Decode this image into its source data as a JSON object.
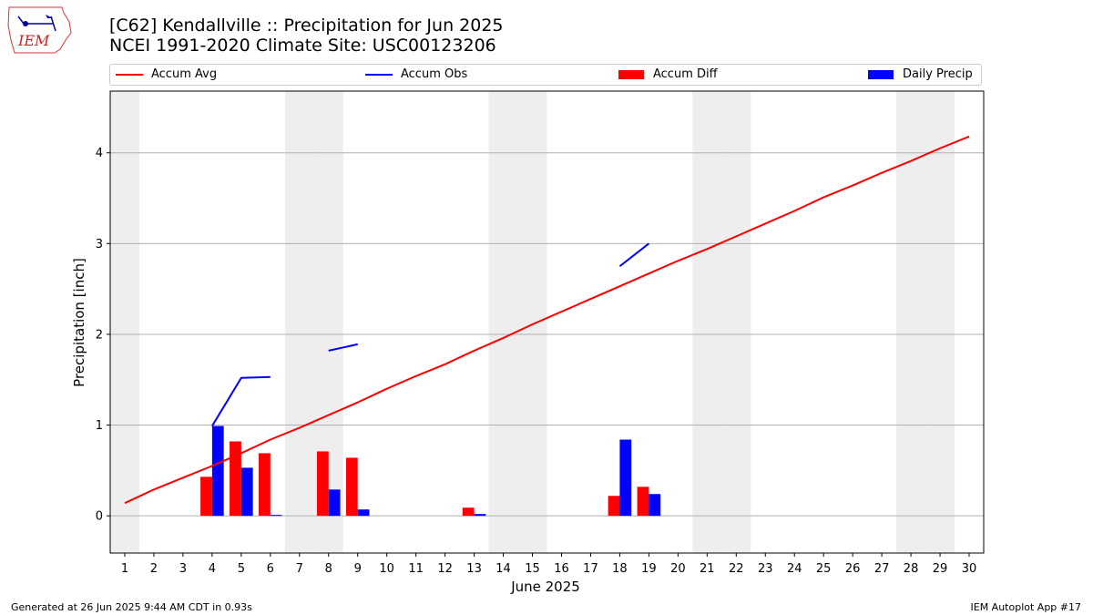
{
  "header": {
    "title_line1": "[C62] Kendallville :: Precipitation for Jun 2025",
    "title_line2": "NCEI 1991-2020 Climate Site: USC00123206",
    "logo_text": "IEM"
  },
  "legend": {
    "items": [
      {
        "label": "Accum Avg",
        "kind": "line",
        "color": "#ff0000"
      },
      {
        "label": "Accum Obs",
        "kind": "line",
        "color": "#0000ff"
      },
      {
        "label": "Accum Diff",
        "kind": "bar",
        "color": "#ff0000"
      },
      {
        "label": "Daily Precip",
        "kind": "bar",
        "color": "#0000ff"
      }
    ],
    "placement": "top, above plot"
  },
  "footer": {
    "left": "Generated at 26 Jun 2025 9:44 AM CDT in 0.93s",
    "right": "IEM Autoplot App #17"
  },
  "chart_data": {
    "type": "bar",
    "xlabel": "June 2025",
    "ylabel": "Precipitation [inch]",
    "x": [
      1,
      2,
      3,
      4,
      5,
      6,
      7,
      8,
      9,
      10,
      11,
      12,
      13,
      14,
      15,
      16,
      17,
      18,
      19,
      20,
      21,
      22,
      23,
      24,
      25,
      26,
      27,
      28,
      29,
      30
    ],
    "xlim": [
      0.5,
      30.5
    ],
    "ylim": [
      -0.41,
      4.68
    ],
    "yticks": [
      0,
      1,
      2,
      3,
      4
    ],
    "grid": "horizontal",
    "weekend_days_shaded": [
      1,
      7,
      8,
      14,
      15,
      21,
      22,
      28,
      29
    ],
    "colors": {
      "avg": "#ff0000",
      "obs": "#0000ff",
      "shade": "#eeeeee",
      "grid": "#b0b0b0"
    },
    "series": [
      {
        "name": "Accum Avg",
        "kind": "line",
        "values": [
          0.14,
          0.29,
          0.42,
          0.55,
          0.69,
          0.84,
          0.97,
          1.11,
          1.25,
          1.4,
          1.54,
          1.67,
          1.82,
          1.96,
          2.11,
          2.25,
          2.39,
          2.53,
          2.67,
          2.81,
          2.94,
          3.08,
          3.22,
          3.36,
          3.51,
          3.64,
          3.78,
          3.91,
          4.05,
          4.18
        ]
      },
      {
        "name": "Accum Obs",
        "kind": "line",
        "values": [
          null,
          null,
          null,
          0.99,
          1.52,
          1.53,
          null,
          1.82,
          1.89,
          null,
          null,
          null,
          null,
          null,
          null,
          null,
          null,
          2.75,
          3.0,
          null,
          null,
          null,
          null,
          null,
          null,
          null,
          null,
          null,
          null,
          null
        ]
      },
      {
        "name": "Accum Diff",
        "kind": "bar",
        "values": [
          null,
          null,
          null,
          0.43,
          0.82,
          0.69,
          null,
          0.71,
          0.64,
          null,
          null,
          null,
          0.09,
          null,
          null,
          null,
          null,
          0.22,
          0.32,
          null,
          null,
          null,
          null,
          null,
          null,
          null,
          null,
          null,
          null,
          null
        ]
      },
      {
        "name": "Daily Precip",
        "kind": "bar",
        "values": [
          null,
          null,
          null,
          0.99,
          0.53,
          0.01,
          null,
          0.29,
          0.07,
          null,
          null,
          null,
          0.02,
          null,
          null,
          null,
          null,
          0.84,
          0.24,
          null,
          null,
          null,
          null,
          null,
          null,
          null,
          null,
          null,
          null,
          null
        ]
      }
    ]
  }
}
